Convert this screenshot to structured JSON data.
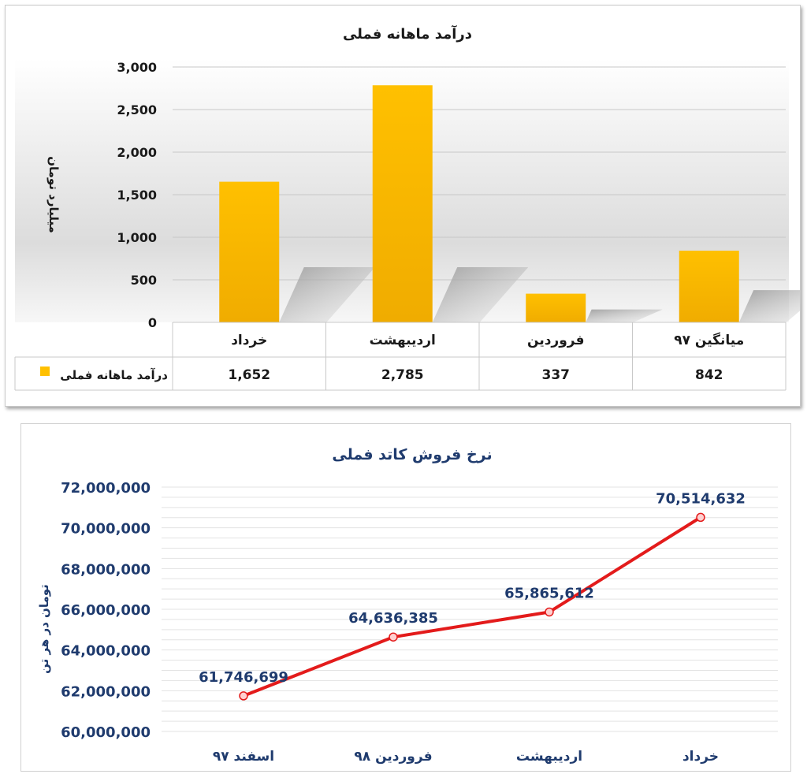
{
  "charts": [
    {
      "type": "bar",
      "title": "درآمد ماهانه فملی",
      "ylabel": "میلیارد تومان",
      "ylim": [
        0,
        3000
      ],
      "yticks": [
        "0",
        "500",
        "1,000",
        "1,500",
        "2,000",
        "2,500",
        "3,000"
      ],
      "ytick_values": [
        0,
        500,
        1000,
        1500,
        2000,
        2500,
        3000
      ],
      "categories": [
        "میانگین ۹۷",
        "فروردین",
        "اردیبهشت",
        "خرداد"
      ],
      "series": [
        {
          "name": "درآمد ماهانه فملی",
          "values": [
            842,
            337,
            2785,
            1652
          ],
          "labels": [
            "842",
            "337",
            "2,785",
            "1,652"
          ]
        }
      ],
      "legend": "data-table-left",
      "bar_color": "#ffc000",
      "grid": true
    },
    {
      "type": "line",
      "title": "نرخ فروش کاتد فملی",
      "ylabel": "تومان در هر تن",
      "ylim": [
        60000000,
        72000000
      ],
      "yticks": [
        "60,000,000",
        "62,000,000",
        "64,000,000",
        "66,000,000",
        "68,000,000",
        "70,000,000",
        "72,000,000"
      ],
      "ytick_values": [
        60000000,
        62000000,
        64000000,
        66000000,
        68000000,
        70000000,
        72000000
      ],
      "categories": [
        "اسفند ۹۷",
        "فروردین ۹۸",
        "اردیبهشت",
        "خرداد"
      ],
      "series": [
        {
          "values": [
            61746699,
            64636385,
            65865612,
            70514632
          ],
          "labels": [
            "61,746,699",
            "64,636,385",
            "65,865,612",
            "70,514,632"
          ]
        }
      ],
      "line_color": "#e31b1b",
      "text_color": "#1f3b6e",
      "grid": true
    }
  ]
}
